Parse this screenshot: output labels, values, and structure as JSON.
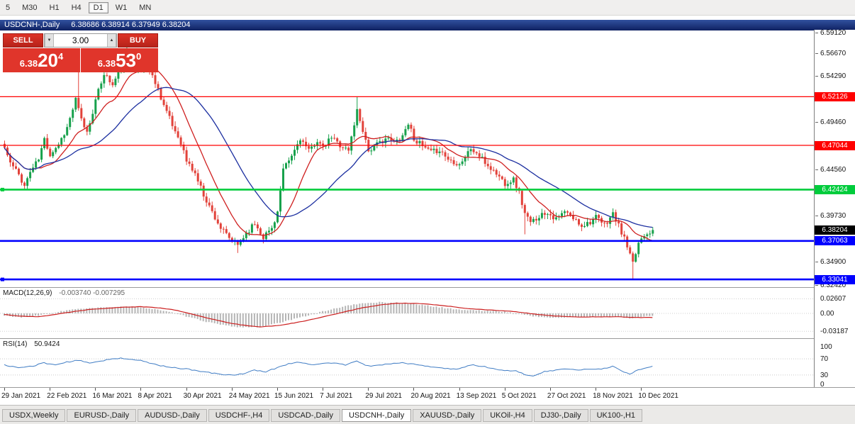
{
  "timeframe_toolbar": {
    "buttons": [
      {
        "label": "5",
        "active": false
      },
      {
        "label": "M30",
        "active": false
      },
      {
        "label": "H1",
        "active": false
      },
      {
        "label": "H4",
        "active": false
      },
      {
        "label": "D1",
        "active": true
      },
      {
        "label": "W1",
        "active": false
      },
      {
        "label": "MN",
        "active": false
      }
    ]
  },
  "chart_window": {
    "title": "USDCNH-,Daily",
    "ohlc_text": "6.38686 6.38914 6.37949 6.38204"
  },
  "trade_panel": {
    "sell_label": "SELL",
    "buy_label": "BUY",
    "volume": "3.00",
    "icons": {
      "volume_down": "▼",
      "volume_up": "▲"
    },
    "sell_price": {
      "big": "6.38",
      "mid": "20",
      "sup": "4"
    },
    "buy_price": {
      "big": "6.38",
      "mid": "53",
      "sup": "0"
    },
    "panel_color": "#e0352b",
    "button_color": "#dd3327"
  },
  "chart_data": {
    "type": "candlestick",
    "symbol": "USDCNH-",
    "timeframe": "Daily",
    "title": "USDCNH-,Daily",
    "ohlc_current": {
      "open": 6.38686,
      "high": 6.38914,
      "low": 6.37949,
      "close": 6.38204
    },
    "bars": 229,
    "bars_per_date_tick": 16,
    "up_color": "#18a14c",
    "down_color": "#e2423a",
    "y_range": [
      6.3242,
      6.5912
    ],
    "y_axis_ticks": [
      "6.59120",
      "6.56670",
      "6.54290",
      "6.51910",
      "6.49460",
      "6.47010",
      "6.44560",
      "6.42180",
      "6.39730",
      "6.37300",
      "6.34900",
      "6.32420"
    ],
    "x_axis_dates": [
      "29 Jan 2021",
      "22 Feb 2021",
      "16 Mar 2021",
      "8 Apr 2021",
      "30 Apr 2021",
      "24 May 2021",
      "15 Jun 2021",
      "7 Jul 2021",
      "29 Jul 2021",
      "20 Aug 2021",
      "13 Sep 2021",
      "5 Oct 2021",
      "27 Oct 2021",
      "18 Nov 2021",
      "10 Dec 2021"
    ],
    "close_anchors": [
      [
        0,
        6.468
      ],
      [
        2,
        6.452
      ],
      [
        5,
        6.44
      ],
      [
        7,
        6.428
      ],
      [
        9,
        6.443
      ],
      [
        12,
        6.456
      ],
      [
        14,
        6.477
      ],
      [
        16,
        6.461
      ],
      [
        19,
        6.472
      ],
      [
        22,
        6.489
      ],
      [
        25,
        6.518
      ],
      [
        27,
        6.497
      ],
      [
        29,
        6.484
      ],
      [
        32,
        6.517
      ],
      [
        35,
        6.546
      ],
      [
        38,
        6.533
      ],
      [
        41,
        6.553
      ],
      [
        44,
        6.557
      ],
      [
        47,
        6.548
      ],
      [
        50,
        6.553
      ],
      [
        53,
        6.537
      ],
      [
        56,
        6.513
      ],
      [
        59,
        6.491
      ],
      [
        62,
        6.474
      ],
      [
        64,
        6.454
      ],
      [
        67,
        6.441
      ],
      [
        70,
        6.419
      ],
      [
        73,
        6.401
      ],
      [
        76,
        6.384
      ],
      [
        79,
        6.373
      ],
      [
        82,
        6.366
      ],
      [
        85,
        6.379
      ],
      [
        88,
        6.389
      ],
      [
        91,
        6.375
      ],
      [
        94,
        6.384
      ],
      [
        96,
        6.401
      ],
      [
        98,
        6.444
      ],
      [
        101,
        6.459
      ],
      [
        104,
        6.478
      ],
      [
        107,
        6.464
      ],
      [
        110,
        6.476
      ],
      [
        112,
        6.467
      ],
      [
        115,
        6.479
      ],
      [
        118,
        6.471
      ],
      [
        121,
        6.465
      ],
      [
        124,
        6.507
      ],
      [
        126,
        6.487
      ],
      [
        128,
        6.465
      ],
      [
        131,
        6.471
      ],
      [
        134,
        6.478
      ],
      [
        137,
        6.473
      ],
      [
        140,
        6.481
      ],
      [
        142,
        6.494
      ],
      [
        144,
        6.478
      ],
      [
        147,
        6.469
      ],
      [
        150,
        6.463
      ],
      [
        153,
        6.466
      ],
      [
        156,
        6.456
      ],
      [
        160,
        6.451
      ],
      [
        164,
        6.467
      ],
      [
        167,
        6.459
      ],
      [
        170,
        6.449
      ],
      [
        173,
        6.441
      ],
      [
        176,
        6.431
      ],
      [
        179,
        6.435
      ],
      [
        181,
        6.421
      ],
      [
        183,
        6.399
      ],
      [
        185,
        6.389
      ],
      [
        188,
        6.397
      ],
      [
        191,
        6.401
      ],
      [
        194,
        6.393
      ],
      [
        197,
        6.401
      ],
      [
        200,
        6.394
      ],
      [
        203,
        6.387
      ],
      [
        206,
        6.391
      ],
      [
        208,
        6.395
      ],
      [
        211,
        6.387
      ],
      [
        214,
        6.399
      ],
      [
        216,
        6.386
      ],
      [
        218,
        6.373
      ],
      [
        221,
        6.346
      ],
      [
        223,
        6.369
      ],
      [
        225,
        6.378
      ],
      [
        228,
        6.38204
      ]
    ],
    "wick_overrides": [
      {
        "t": 7,
        "low": 6.424
      },
      {
        "t": 26,
        "high": 6.553
      },
      {
        "t": 43,
        "high": 6.577
      },
      {
        "t": 50,
        "high": 6.557
      },
      {
        "t": 82,
        "low": 6.358
      },
      {
        "t": 124,
        "high": 6.5215
      },
      {
        "t": 183,
        "low": 6.3775
      },
      {
        "t": 221,
        "low": 6.331
      }
    ],
    "moving_averages": [
      {
        "name": "fast",
        "window": 13,
        "color": "#cf2020"
      },
      {
        "name": "slow",
        "window": 34,
        "color": "#1c2fa0"
      }
    ],
    "horizontal_lines": [
      {
        "price": 6.52126,
        "label": "6.52126",
        "color": "#ff0000",
        "width": 1.2,
        "handle": false
      },
      {
        "price": 6.47044,
        "label": "6.47044",
        "color": "#ff0000",
        "width": 1.2,
        "handle": false
      },
      {
        "price": 6.42424,
        "label": "6.42424",
        "color": "#00cc3c",
        "width": 2.6,
        "handle": true
      },
      {
        "price": 6.37063,
        "label": "6.37063",
        "color": "#0000ff",
        "width": 2.6,
        "handle": false
      },
      {
        "price": 6.33041,
        "label": "6.33041",
        "color": "#0000ff",
        "width": 2.6,
        "handle": true
      }
    ],
    "current_price": {
      "value": 6.38204,
      "label": "6.38204",
      "badge_color": "#000000"
    },
    "macd": {
      "label": "MACD(12,26,9)",
      "values_text": "-0.003740 -0.007295",
      "hist_color": "#b5b5b5",
      "signal_color": "#cc2020",
      "scale": [
        {
          "v": 0.02607,
          "label": "0.02607"
        },
        {
          "v": 0,
          "label": "0.00"
        },
        {
          "v": -0.03187,
          "label": "-0.03187"
        }
      ],
      "anchors": [
        [
          0,
          -0.004,
          -0.002
        ],
        [
          6,
          -0.007,
          -0.005
        ],
        [
          12,
          -0.004,
          -0.006
        ],
        [
          18,
          0.002,
          -0.002
        ],
        [
          24,
          0.007,
          0.003
        ],
        [
          30,
          0.009,
          0.007
        ],
        [
          36,
          0.011,
          0.009
        ],
        [
          42,
          0.012,
          0.011
        ],
        [
          48,
          0.011,
          0.012
        ],
        [
          54,
          0.007,
          0.01
        ],
        [
          60,
          0.0,
          0.006
        ],
        [
          66,
          -0.008,
          -0.001
        ],
        [
          72,
          -0.016,
          -0.009
        ],
        [
          78,
          -0.022,
          -0.016
        ],
        [
          84,
          -0.025,
          -0.021
        ],
        [
          90,
          -0.024,
          -0.024
        ],
        [
          96,
          -0.018,
          -0.022
        ],
        [
          102,
          -0.01,
          -0.017
        ],
        [
          108,
          -0.002,
          -0.011
        ],
        [
          114,
          0.006,
          -0.004
        ],
        [
          120,
          0.013,
          0.003
        ],
        [
          126,
          0.018,
          0.01
        ],
        [
          132,
          0.02,
          0.015
        ],
        [
          138,
          0.019,
          0.018
        ],
        [
          144,
          0.017,
          0.018
        ],
        [
          150,
          0.013,
          0.016
        ],
        [
          156,
          0.009,
          0.013
        ],
        [
          162,
          0.006,
          0.009
        ],
        [
          168,
          0.005,
          0.007
        ],
        [
          174,
          0.004,
          0.005
        ],
        [
          180,
          0.0,
          0.003
        ],
        [
          186,
          -0.005,
          -0.001
        ],
        [
          192,
          -0.008,
          -0.004
        ],
        [
          198,
          -0.007,
          -0.006
        ],
        [
          204,
          -0.006,
          -0.0065
        ],
        [
          210,
          -0.005,
          -0.006
        ],
        [
          216,
          -0.006,
          -0.006
        ],
        [
          220,
          -0.009,
          -0.007
        ],
        [
          224,
          -0.006,
          -0.0075
        ],
        [
          228,
          -0.00374,
          -0.0073
        ]
      ]
    },
    "rsi": {
      "label": "RSI(14)",
      "value": "50.9424",
      "color": "#3f7cc4",
      "scale": [
        {
          "v": 100,
          "label": "100"
        },
        {
          "v": 70,
          "label": "70"
        },
        {
          "v": 30,
          "label": "30"
        },
        {
          "v": 0,
          "label": "0"
        }
      ],
      "levels": [
        70,
        30
      ],
      "anchors": [
        [
          0,
          55
        ],
        [
          5,
          48
        ],
        [
          10,
          52
        ],
        [
          14,
          60
        ],
        [
          18,
          55
        ],
        [
          22,
          62
        ],
        [
          26,
          66
        ],
        [
          30,
          60
        ],
        [
          34,
          65
        ],
        [
          38,
          70
        ],
        [
          41,
          72
        ],
        [
          44,
          68
        ],
        [
          48,
          66
        ],
        [
          52,
          58
        ],
        [
          56,
          52
        ],
        [
          60,
          48
        ],
        [
          64,
          45
        ],
        [
          68,
          40
        ],
        [
          72,
          36
        ],
        [
          76,
          32
        ],
        [
          80,
          30
        ],
        [
          84,
          33
        ],
        [
          88,
          42
        ],
        [
          92,
          38
        ],
        [
          96,
          48
        ],
        [
          100,
          58
        ],
        [
          104,
          62
        ],
        [
          108,
          56
        ],
        [
          112,
          58
        ],
        [
          116,
          60
        ],
        [
          120,
          55
        ],
        [
          124,
          64
        ],
        [
          128,
          52
        ],
        [
          132,
          55
        ],
        [
          136,
          58
        ],
        [
          140,
          60
        ],
        [
          144,
          57
        ],
        [
          148,
          52
        ],
        [
          152,
          48
        ],
        [
          156,
          46
        ],
        [
          160,
          45
        ],
        [
          164,
          55
        ],
        [
          168,
          52
        ],
        [
          172,
          46
        ],
        [
          176,
          40
        ],
        [
          180,
          42
        ],
        [
          183,
          30
        ],
        [
          186,
          28
        ],
        [
          190,
          38
        ],
        [
          194,
          42
        ],
        [
          198,
          45
        ],
        [
          202,
          42
        ],
        [
          206,
          45
        ],
        [
          210,
          44
        ],
        [
          214,
          52
        ],
        [
          218,
          38
        ],
        [
          220,
          32
        ],
        [
          222,
          40
        ],
        [
          225,
          47
        ],
        [
          228,
          51
        ]
      ]
    }
  },
  "bottom_tabs": {
    "items": [
      {
        "label": "USDX,Weekly",
        "active": false
      },
      {
        "label": "EURUSD-,Daily",
        "active": false
      },
      {
        "label": "AUDUSD-,Daily",
        "active": false
      },
      {
        "label": "USDCHF-,H4",
        "active": false
      },
      {
        "label": "USDCAD-,Daily",
        "active": false
      },
      {
        "label": "USDCNH-,Daily",
        "active": true
      },
      {
        "label": "XAUUSD-,Daily",
        "active": false
      },
      {
        "label": "UKOil-,H4",
        "active": false
      },
      {
        "label": "DJ30-,Daily",
        "active": false
      },
      {
        "label": "UK100-,H1",
        "active": false
      }
    ]
  }
}
